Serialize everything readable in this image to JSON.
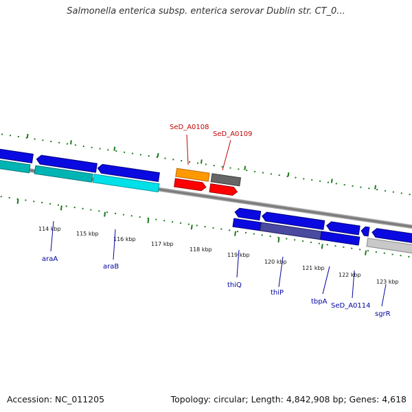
{
  "title": "Salmonella enterica subsp. enterica serovar Dublin str. CT_0...",
  "footer": {
    "accession": "Accession: NC_011205",
    "topology": "Topology: circular; Length: 4,842,908 bp; Genes: 4,618"
  },
  "ticks": [
    "114 kbp",
    "115 kbp",
    "116 kbp",
    "117 kbp",
    "118 kbp",
    "119 kbp",
    "120 kbp",
    "121 kbp",
    "122 kbp",
    "123 kbp"
  ],
  "genes": [
    "araA",
    "araB",
    "thiQ",
    "thiP",
    "tbpA",
    "SeD_A0114",
    "sgrR"
  ],
  "features": [
    "SeD_A0108",
    "SeD_A0109"
  ],
  "colors": {
    "gene_blue": "#0a0ae0",
    "gene_cyan": "#00d8e0",
    "gene_teal": "#00b4b4",
    "gene_red": "#ff0000",
    "gene_orange": "#ff9900",
    "gene_gray": "#666666",
    "gene_lightgray": "#c8c8c8",
    "backbone": "#888888",
    "tick_green": "#1a7a1a",
    "label_blue": "#0000a0",
    "label_red": "#c00000"
  }
}
